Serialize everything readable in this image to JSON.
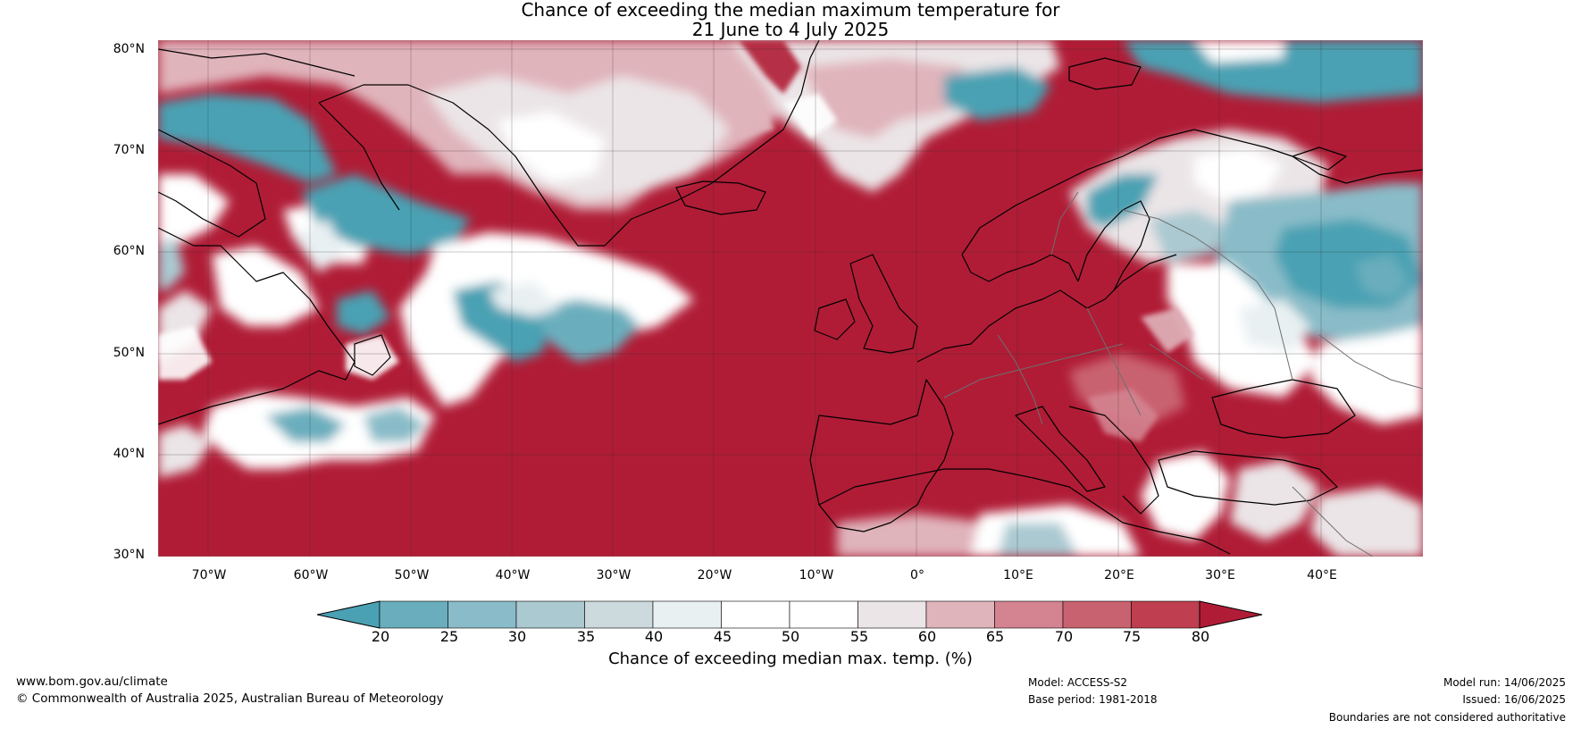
{
  "title": {
    "line1": "Chance of exceeding the median maximum temperature for",
    "line2": "21 June to 4 July 2025"
  },
  "axes": {
    "lat_labels": [
      "80°N",
      "70°N",
      "60°N",
      "50°N",
      "40°N",
      "30°N"
    ],
    "lon_labels": [
      "70°W",
      "60°W",
      "50°W",
      "40°W",
      "30°W",
      "20°W",
      "10°W",
      "0°",
      "10°E",
      "20°E",
      "30°E",
      "40°E"
    ]
  },
  "colorbar": {
    "ticks": [
      "20",
      "25",
      "30",
      "35",
      "40",
      "45",
      "50",
      "55",
      "60",
      "65",
      "70",
      "75",
      "80"
    ],
    "label": "Chance of exceeding median max. temp. (%)",
    "colors": [
      "#4aa1b3",
      "#6aaebd",
      "#89bcc8",
      "#aac9d1",
      "#ccd9dd",
      "#e9f0f2",
      "#ffffff",
      "#ffffff",
      "#ebe5e7",
      "#e0b4bb",
      "#d48390",
      "#c96270",
      "#bf3e50",
      "#b01c36"
    ]
  },
  "footer": {
    "website": "www.bom.gov.au/climate",
    "copyright": "© Commonwealth of Australia 2025, Australian Bureau of Meteorology",
    "model": "Model: ACCESS-S2",
    "base_period": "Base period: 1981-2018",
    "model_run": "Model run: 14/06/2025",
    "issued": "Issued: 16/06/2025",
    "disclaimer": "Boundaries are not considered authoritative"
  }
}
